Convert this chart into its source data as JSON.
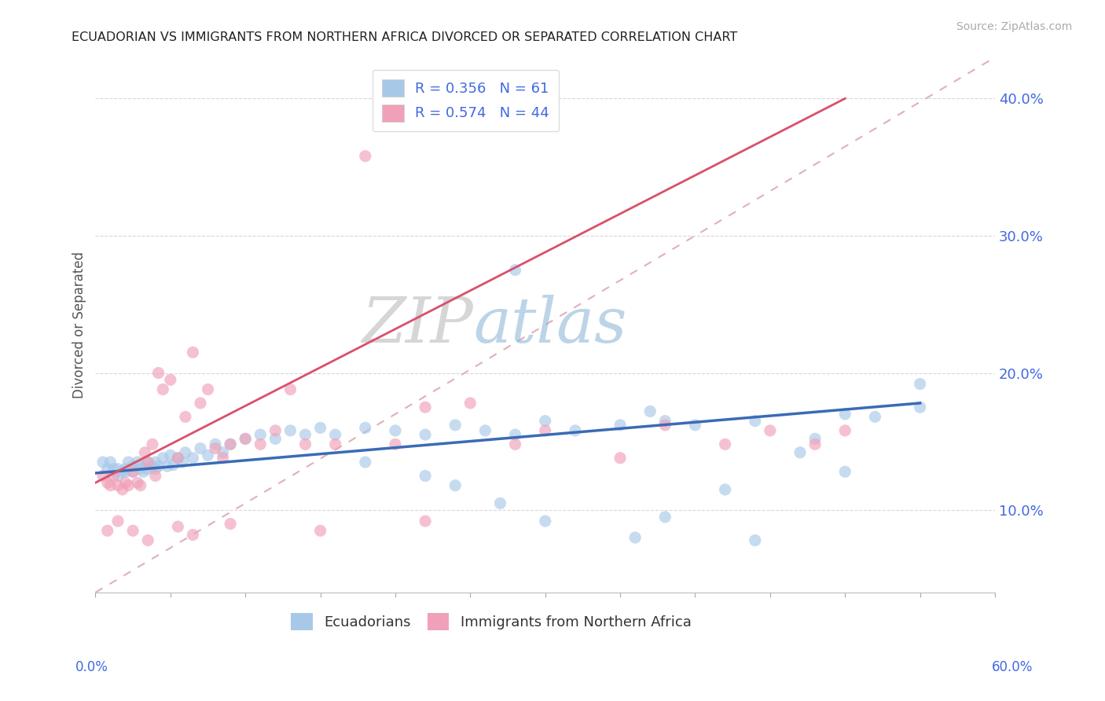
{
  "title": "ECUADORIAN VS IMMIGRANTS FROM NORTHERN AFRICA DIVORCED OR SEPARATED CORRELATION CHART",
  "source": "Source: ZipAtlas.com",
  "ylabel": "Divorced or Separated",
  "xlim": [
    0.0,
    0.6
  ],
  "ylim": [
    0.04,
    0.43
  ],
  "ytick_vals": [
    0.1,
    0.2,
    0.3,
    0.4
  ],
  "ytick_labels": [
    "10.0%",
    "20.0%",
    "30.0%",
    "40.0%"
  ],
  "series1_label": "Ecuadorians",
  "series1_color": "#a8c8e8",
  "series1_R": 0.356,
  "series1_N": 61,
  "series1_trend_color": "#3a6bb5",
  "series2_label": "Immigrants from Northern Africa",
  "series2_color": "#f0a0b8",
  "series2_R": 0.574,
  "series2_N": 44,
  "series2_trend_color": "#d9506a",
  "legend_R_color": "#4169e1",
  "watermark_zip": "ZIP",
  "watermark_atlas": "atlas",
  "background_color": "#ffffff",
  "scatter_alpha": 0.65,
  "scatter_size": 120,
  "ref_line_color": "#e0b0b8",
  "grid_color": "#d8d8d8",
  "series1_x": [
    0.005,
    0.008,
    0.01,
    0.012,
    0.015,
    0.015,
    0.018,
    0.02,
    0.02,
    0.022,
    0.025,
    0.025,
    0.028,
    0.03,
    0.03,
    0.032,
    0.035,
    0.035,
    0.038,
    0.04,
    0.04,
    0.042,
    0.045,
    0.048,
    0.05,
    0.052,
    0.055,
    0.058,
    0.06,
    0.065,
    0.07,
    0.075,
    0.08,
    0.085,
    0.09,
    0.1,
    0.11,
    0.12,
    0.13,
    0.14,
    0.15,
    0.16,
    0.18,
    0.2,
    0.22,
    0.24,
    0.26,
    0.28,
    0.3,
    0.32,
    0.35,
    0.38,
    0.4,
    0.44,
    0.48,
    0.5,
    0.52,
    0.55,
    0.28,
    0.37,
    0.55
  ],
  "series1_y": [
    0.135,
    0.13,
    0.135,
    0.13,
    0.13,
    0.125,
    0.128,
    0.13,
    0.128,
    0.135,
    0.132,
    0.128,
    0.135,
    0.13,
    0.132,
    0.128,
    0.135,
    0.13,
    0.132,
    0.135,
    0.13,
    0.132,
    0.138,
    0.132,
    0.14,
    0.133,
    0.138,
    0.135,
    0.142,
    0.138,
    0.145,
    0.14,
    0.148,
    0.142,
    0.148,
    0.152,
    0.155,
    0.152,
    0.158,
    0.155,
    0.16,
    0.155,
    0.16,
    0.158,
    0.155,
    0.162,
    0.158,
    0.155,
    0.165,
    0.158,
    0.162,
    0.165,
    0.162,
    0.165,
    0.152,
    0.17,
    0.168,
    0.175,
    0.275,
    0.172,
    0.192
  ],
  "series1_y_low": [
    0.092,
    0.105,
    0.118,
    0.125,
    0.135,
    0.095,
    0.128,
    0.115,
    0.142,
    0.08,
    0.078
  ],
  "series1_x_low": [
    0.3,
    0.27,
    0.24,
    0.22,
    0.18,
    0.38,
    0.5,
    0.42,
    0.47,
    0.36,
    0.44
  ],
  "series2_x": [
    0.005,
    0.008,
    0.01,
    0.012,
    0.015,
    0.018,
    0.02,
    0.022,
    0.025,
    0.028,
    0.03,
    0.033,
    0.035,
    0.038,
    0.04,
    0.042,
    0.045,
    0.05,
    0.055,
    0.06,
    0.065,
    0.07,
    0.075,
    0.08,
    0.085,
    0.09,
    0.1,
    0.11,
    0.12,
    0.13,
    0.14,
    0.16,
    0.18,
    0.2,
    0.22,
    0.25,
    0.28,
    0.3,
    0.35,
    0.38,
    0.42,
    0.45,
    0.48,
    0.5
  ],
  "series2_y": [
    0.125,
    0.12,
    0.118,
    0.125,
    0.118,
    0.115,
    0.12,
    0.118,
    0.128,
    0.12,
    0.118,
    0.142,
    0.135,
    0.148,
    0.125,
    0.2,
    0.188,
    0.195,
    0.138,
    0.168,
    0.215,
    0.178,
    0.188,
    0.145,
    0.138,
    0.148,
    0.152,
    0.148,
    0.158,
    0.188,
    0.148,
    0.148,
    0.358,
    0.148,
    0.175,
    0.178,
    0.148,
    0.158,
    0.138,
    0.162,
    0.148,
    0.158,
    0.148,
    0.158
  ],
  "series2_y_low": [
    0.085,
    0.092,
    0.085,
    0.078,
    0.088,
    0.082,
    0.09,
    0.085,
    0.092
  ],
  "series2_x_low": [
    0.008,
    0.015,
    0.025,
    0.035,
    0.055,
    0.065,
    0.09,
    0.15,
    0.22
  ],
  "trend1_x0": 0.0,
  "trend1_y0": 0.127,
  "trend1_x1": 0.55,
  "trend1_y1": 0.178,
  "trend2_x0": 0.0,
  "trend2_y0": 0.12,
  "trend2_x1": 0.5,
  "trend2_y1": 0.4
}
